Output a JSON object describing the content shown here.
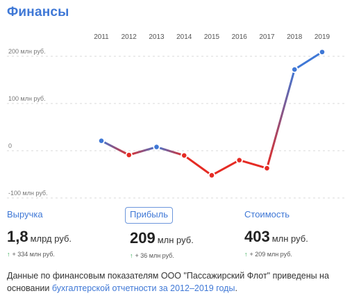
{
  "page": {
    "title": "Финансы"
  },
  "chart_data": {
    "type": "line",
    "x": [
      "2011",
      "2012",
      "2013",
      "2014",
      "2015",
      "2016",
      "2017",
      "2018",
      "2019"
    ],
    "ytick_labels": [
      "200 млн руб.",
      "100 млн руб.",
      "0",
      "-100 млн руб."
    ],
    "ytick_values": [
      200,
      100,
      0,
      -100
    ],
    "ylim": [
      -100,
      215
    ],
    "series": [
      {
        "values": [
          21,
          -9,
          8,
          -10,
          -52,
          -20,
          -37,
          172,
          209
        ]
      }
    ],
    "colors": {
      "positive": "#3f78d6",
      "negative": "#e52b24",
      "point_fill": "#ffffff"
    },
    "grid": true
  },
  "metrics": [
    {
      "label": "Выручка",
      "value": "1,8",
      "unit": "млрд руб.",
      "change": "+ 334 млн руб.",
      "active": false
    },
    {
      "label": "Прибыль",
      "value": "209",
      "unit": "млн руб.",
      "change": "+ 36 млн руб.",
      "active": true
    },
    {
      "label": "Стоимость",
      "value": "403",
      "unit": "млн руб.",
      "change": "+ 209 млн руб.",
      "active": false
    }
  ],
  "footnote": {
    "text": "Данные по финансовым показателям ООО \"Пассажирский Флот\" приведены на основании ",
    "link": "бухгалтерской отчетности за 2012–2019 годы",
    "end": "."
  }
}
